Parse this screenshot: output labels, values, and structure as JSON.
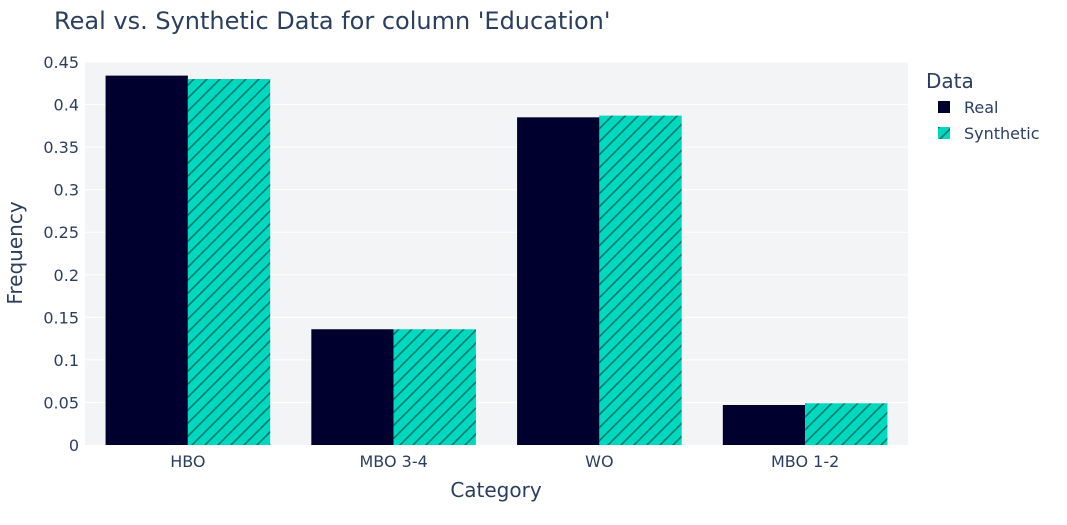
{
  "chart_data": {
    "type": "bar",
    "title": "Real vs. Synthetic Data for column 'Education'",
    "xlabel": "Category",
    "ylabel": "Frequency",
    "categories": [
      "HBO",
      "MBO 3-4",
      "WO",
      "MBO 1-2"
    ],
    "series": [
      {
        "name": "Real",
        "values": [
          0.434,
          0.136,
          0.385,
          0.047
        ],
        "color": "#00002e",
        "pattern": "solid"
      },
      {
        "name": "Synthetic",
        "values": [
          0.43,
          0.136,
          0.387,
          0.049
        ],
        "color": "#00d8bf",
        "pattern": "diagonal-hatch"
      }
    ],
    "ylim": [
      0,
      0.45
    ],
    "yticks": [
      0,
      0.05,
      0.1,
      0.15,
      0.2,
      0.25,
      0.3,
      0.35,
      0.4,
      0.45
    ],
    "ytick_labels": [
      "0",
      "0.05",
      "0.1",
      "0.15",
      "0.2",
      "0.25",
      "0.3",
      "0.35",
      "0.4",
      "0.45"
    ],
    "legend_title": "Data",
    "legend_position": "top-right",
    "grid": true,
    "plot_bg": "#f3f4f6",
    "grid_color": "#ffffff",
    "hatch_color": "#007a6b"
  }
}
